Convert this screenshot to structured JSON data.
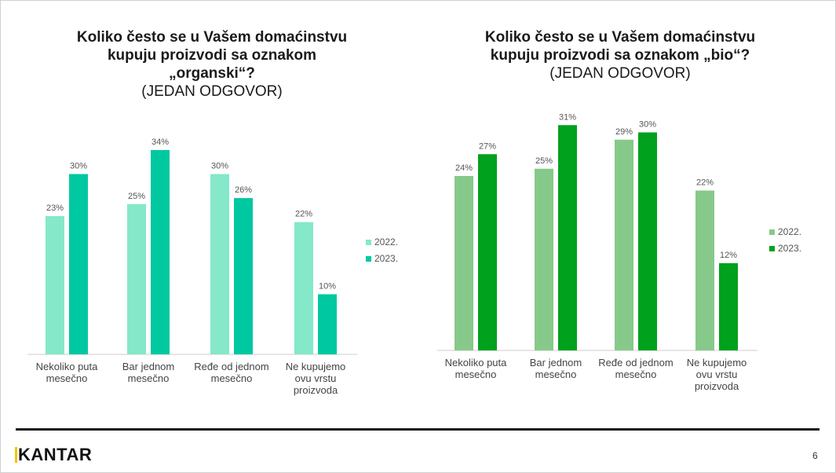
{
  "colors": {
    "left_2022": "#84E8C9",
    "left_2023": "#00C8A0",
    "right_2022": "#86C98A",
    "right_2023": "#00A11D",
    "axis": "#cccccc",
    "label": "#555555"
  },
  "footer": {
    "brand": "KANTAR",
    "page_number": "6"
  },
  "chart_data": [
    {
      "type": "bar",
      "title_bold": "Koliko često se u Vašem domaćinstvu kupuju proizvodi sa oznakom „organski“?",
      "title_lines": [
        "Koliko često se u Vašem domaćinstvu",
        "kupuju proizvodi sa oznakom",
        "„organski“?"
      ],
      "subtitle": "(JEDAN ODGOVOR)",
      "categories": [
        [
          "Nekoliko puta",
          "mesečno"
        ],
        [
          "Bar jednom",
          "mesečno"
        ],
        [
          "Ređe od jednom",
          "mesečno"
        ],
        [
          "Ne kupujemo",
          "ovu vrstu",
          "proizvoda"
        ]
      ],
      "series": [
        {
          "name": "2022.",
          "values": [
            23,
            25,
            30,
            22
          ],
          "labels": [
            "23%",
            "25%",
            "30%",
            "22%"
          ]
        },
        {
          "name": "2023.",
          "values": [
            30,
            34,
            26,
            10
          ],
          "labels": [
            "30%",
            "34%",
            "26%",
            "10%"
          ]
        }
      ],
      "ylim": [
        0,
        36
      ],
      "legend": "right"
    },
    {
      "type": "bar",
      "title_bold": "Koliko često se u Vašem domaćinstvu kupuju proizvodi sa oznakom „bio“?",
      "title_lines": [
        "Koliko često se u Vašem domaćinstvu",
        "kupuju proizvodi sa oznakom „bio“?"
      ],
      "subtitle": "(JEDAN ODGOVOR)",
      "categories": [
        [
          "Nekoliko puta",
          "mesečno"
        ],
        [
          "Bar jednom",
          "mesečno"
        ],
        [
          "Ređe od jednom",
          "mesečno"
        ],
        [
          "Ne kupujemo",
          "ovu vrstu",
          "proizvoda"
        ]
      ],
      "series": [
        {
          "name": "2022.",
          "values": [
            24,
            25,
            29,
            22
          ],
          "labels": [
            "24%",
            "25%",
            "29%",
            "22%"
          ]
        },
        {
          "name": "2023.",
          "values": [
            27,
            31,
            30,
            12
          ],
          "labels": [
            "27%",
            "31%",
            "30%",
            "12%"
          ]
        }
      ],
      "ylim": [
        0,
        36
      ],
      "legend": "right"
    }
  ]
}
